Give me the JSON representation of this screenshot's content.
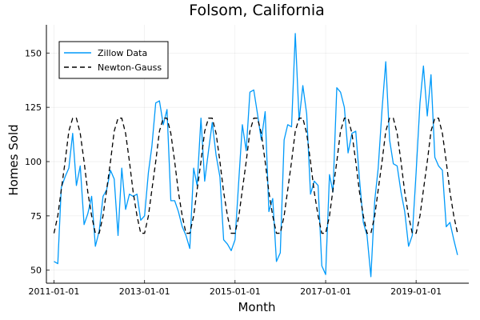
{
  "chart_data": {
    "type": "line",
    "title": "Folsom, California",
    "xlabel": "Month",
    "ylabel": "Homes Sold",
    "x_axis_type": "date",
    "x_ticks": [
      "2011-01-01",
      "2013-01-01",
      "2015-01-01",
      "2017-01-01",
      "2019-01-01"
    ],
    "y_ticks": [
      50,
      75,
      100,
      125,
      150
    ],
    "xlim": [
      "2010-11-01",
      "2020-03-01"
    ],
    "ylim": [
      44,
      163
    ],
    "grid": true,
    "legend_position": "top-left",
    "x": [
      "2011-01-01",
      "2011-02-01",
      "2011-03-01",
      "2011-04-01",
      "2011-05-01",
      "2011-06-01",
      "2011-07-01",
      "2011-08-01",
      "2011-09-01",
      "2011-10-01",
      "2011-11-01",
      "2011-12-01",
      "2012-01-01",
      "2012-02-01",
      "2012-03-01",
      "2012-04-01",
      "2012-05-01",
      "2012-06-01",
      "2012-07-01",
      "2012-08-01",
      "2012-09-01",
      "2012-10-01",
      "2012-11-01",
      "2012-12-01",
      "2013-01-01",
      "2013-02-01",
      "2013-03-01",
      "2013-04-01",
      "2013-05-01",
      "2013-06-01",
      "2013-07-01",
      "2013-08-01",
      "2013-09-01",
      "2013-10-01",
      "2013-11-01",
      "2013-12-01",
      "2014-01-01",
      "2014-02-01",
      "2014-03-01",
      "2014-04-01",
      "2014-05-01",
      "2014-06-01",
      "2014-07-01",
      "2014-08-01",
      "2014-09-01",
      "2014-10-01",
      "2014-11-01",
      "2014-12-01",
      "2015-01-01",
      "2015-02-01",
      "2015-03-01",
      "2015-04-01",
      "2015-05-01",
      "2015-06-01",
      "2015-07-01",
      "2015-08-01",
      "2015-09-01",
      "2015-10-01",
      "2015-11-01",
      "2015-12-01",
      "2016-01-01",
      "2016-02-01",
      "2016-03-01",
      "2016-04-01",
      "2016-05-01",
      "2016-06-01",
      "2016-07-01",
      "2016-08-01",
      "2016-09-01",
      "2016-10-01",
      "2016-11-01",
      "2016-12-01",
      "2017-01-01",
      "2017-02-01",
      "2017-03-01",
      "2017-04-01",
      "2017-05-01",
      "2017-06-01",
      "2017-07-01",
      "2017-08-01",
      "2017-09-01",
      "2017-10-01",
      "2017-11-01",
      "2017-12-01",
      "2018-01-01",
      "2018-02-01",
      "2018-03-01",
      "2018-04-01",
      "2018-05-01",
      "2018-06-01",
      "2018-07-01",
      "2018-08-01",
      "2018-09-01",
      "2018-10-01",
      "2018-11-01",
      "2018-12-01",
      "2019-01-01",
      "2019-02-01",
      "2019-03-01",
      "2019-04-01",
      "2019-05-01",
      "2019-06-01",
      "2019-07-01",
      "2019-08-01",
      "2019-09-01",
      "2019-10-01",
      "2019-11-01",
      "2019-12-01"
    ],
    "series": [
      {
        "name": "Zillow Data",
        "color": "#009AFA",
        "style": "solid",
        "values": [
          54,
          53,
          88,
          93,
          97,
          113,
          89,
          98,
          71,
          76,
          84,
          61,
          68,
          84,
          87,
          96,
          92,
          66,
          97,
          78,
          85,
          84,
          85,
          73,
          75,
          95,
          107,
          127,
          128,
          117,
          124,
          82,
          82,
          77,
          70,
          66,
          60,
          97,
          89,
          120,
          91,
          105,
          118,
          103,
          93,
          64,
          62,
          59,
          64,
          92,
          117,
          105,
          132,
          133,
          122,
          110,
          123,
          77,
          83,
          54,
          58,
          110,
          117,
          116,
          159,
          119,
          135,
          122,
          85,
          91,
          89,
          52,
          48,
          94,
          86,
          134,
          132,
          125,
          104,
          113,
          114,
          92,
          72,
          66,
          47,
          82,
          97,
          124,
          146,
          110,
          99,
          98,
          86,
          77,
          61,
          66,
          95,
          127,
          144,
          121,
          140,
          102,
          98,
          96,
          70,
          72,
          64,
          57
        ]
      },
      {
        "name": "Newton-Gauss",
        "color": "#000000",
        "style": "dashed",
        "values": [
          67,
          75,
          87,
          100,
          114,
          120,
          120,
          113,
          100,
          86,
          75,
          67,
          67,
          75,
          87,
          100,
          114,
          120,
          120,
          113,
          100,
          86,
          75,
          67,
          67,
          75,
          87,
          100,
          114,
          120,
          120,
          113,
          100,
          86,
          75,
          67,
          67,
          75,
          87,
          100,
          114,
          120,
          120,
          113,
          100,
          86,
          75,
          67,
          67,
          75,
          87,
          100,
          114,
          120,
          120,
          113,
          100,
          86,
          75,
          67,
          67,
          75,
          87,
          100,
          114,
          120,
          120,
          113,
          100,
          86,
          75,
          67,
          67,
          75,
          87,
          100,
          114,
          120,
          120,
          113,
          100,
          86,
          75,
          67,
          67,
          75,
          87,
          100,
          114,
          120,
          120,
          113,
          100,
          86,
          75,
          67,
          67,
          75,
          87,
          100,
          114,
          120,
          120,
          113,
          100,
          86,
          75,
          67
        ]
      }
    ]
  }
}
